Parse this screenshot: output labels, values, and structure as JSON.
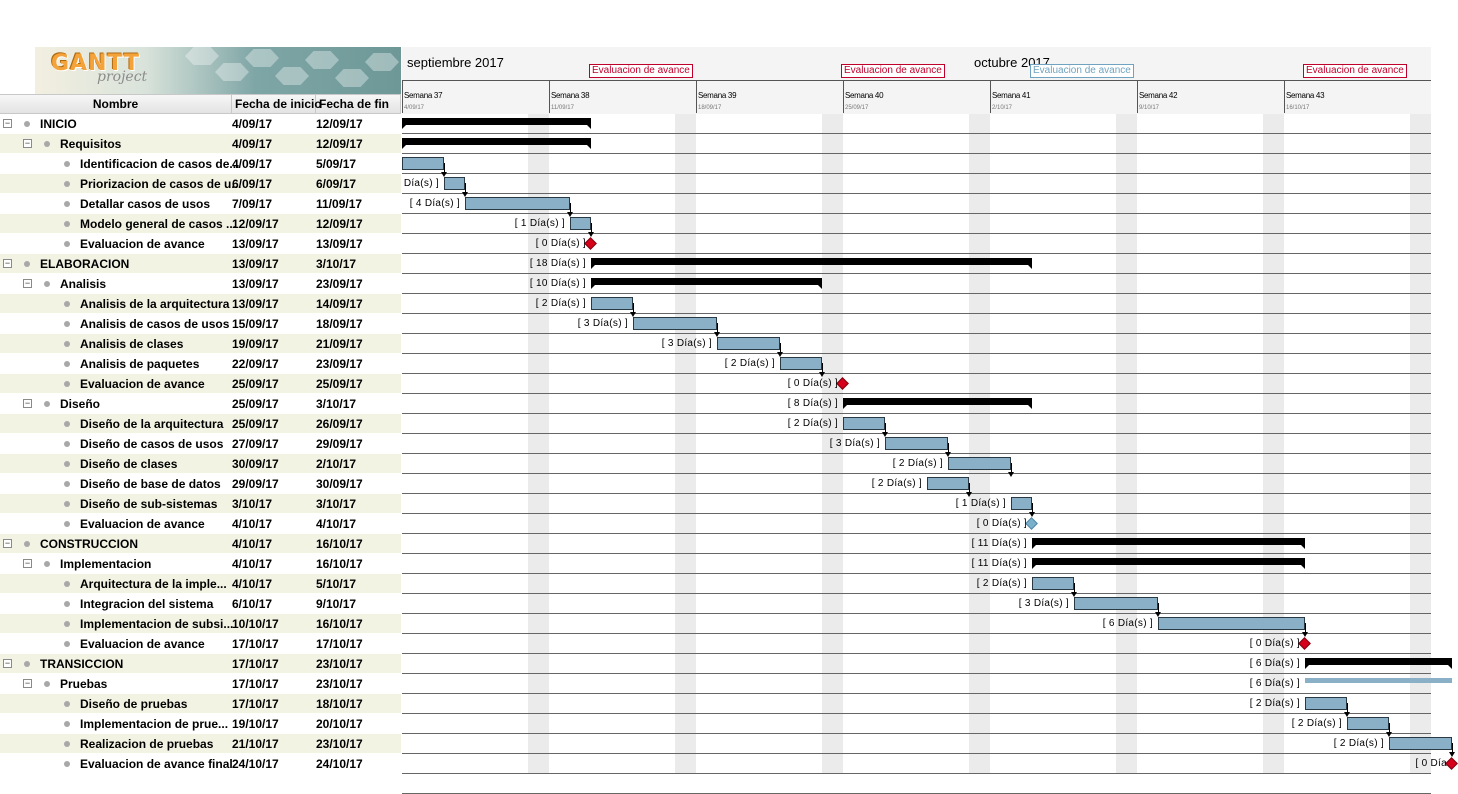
{
  "logo": {
    "word": "GANTT",
    "sub": "project"
  },
  "columns": {
    "name": "Nombre",
    "start": "Fecha de inicio",
    "end": "Fecha de fin"
  },
  "timeline": {
    "months": [
      {
        "label": "septiembre 2017",
        "day": 0
      },
      {
        "label": "octubre 2017",
        "day": 27
      }
    ],
    "weeks": [
      {
        "label": "Semana 37",
        "date": "4/09/17"
      },
      {
        "label": "Semana 38",
        "date": "11/09/17"
      },
      {
        "label": "Semana 39",
        "date": "18/09/17"
      },
      {
        "label": "Semana 40",
        "date": "25/09/17"
      },
      {
        "label": "Semana 41",
        "date": "2/10/17"
      },
      {
        "label": "Semana 42",
        "date": "9/10/17"
      },
      {
        "label": "Semana 43",
        "date": "16/10/17"
      }
    ],
    "milestone_labels": [
      {
        "text": "Evaluacion de avance",
        "day": 9,
        "past": false
      },
      {
        "text": "Evaluacion de avance",
        "day": 21,
        "past": false
      },
      {
        "text": "Evaluacion de avance",
        "day": 30,
        "past": true
      },
      {
        "text": "Evaluacion de avance",
        "day": 43,
        "past": false
      }
    ]
  },
  "tasks": [
    {
      "name": "INICIO",
      "start": "4/09/17",
      "end": "12/09/17",
      "level": 0,
      "type": "summary",
      "s": 0,
      "e": 9,
      "dur": ""
    },
    {
      "name": "Requisitos",
      "start": "4/09/17",
      "end": "12/09/17",
      "level": 1,
      "type": "summary",
      "s": 0,
      "e": 9,
      "dur": ""
    },
    {
      "name": "Identificacion de casos de...",
      "start": "4/09/17",
      "end": "5/09/17",
      "level": 2,
      "type": "task",
      "s": 0,
      "e": 2,
      "dur": ""
    },
    {
      "name": "Priorizacion de casos de u...",
      "start": "6/09/17",
      "end": "6/09/17",
      "level": 2,
      "type": "task",
      "s": 2,
      "e": 3,
      "dur": "Día(s) ]"
    },
    {
      "name": "Detallar casos de usos",
      "start": "7/09/17",
      "end": "11/09/17",
      "level": 2,
      "type": "task",
      "s": 3,
      "e": 8,
      "dur": "[ 4 Día(s) ]"
    },
    {
      "name": "Modelo general de casos ...",
      "start": "12/09/17",
      "end": "12/09/17",
      "level": 2,
      "type": "task",
      "s": 8,
      "e": 9,
      "dur": "[ 1 Día(s) ]"
    },
    {
      "name": "Evaluacion de avance",
      "start": "13/09/17",
      "end": "13/09/17",
      "level": 2,
      "type": "milestone",
      "s": 9,
      "e": 9,
      "dur": "[ 0 Día(s) ]"
    },
    {
      "name": "ELABORACION",
      "start": "13/09/17",
      "end": "3/10/17",
      "level": 0,
      "type": "summary",
      "s": 9,
      "e": 30,
      "dur": "[ 18 Día(s) ]"
    },
    {
      "name": "Analisis",
      "start": "13/09/17",
      "end": "23/09/17",
      "level": 1,
      "type": "summary",
      "s": 9,
      "e": 20,
      "dur": "[ 10 Día(s) ]"
    },
    {
      "name": "Analisis de la arquitectura",
      "start": "13/09/17",
      "end": "14/09/17",
      "level": 2,
      "type": "task",
      "s": 9,
      "e": 11,
      "dur": "[ 2 Día(s) ]"
    },
    {
      "name": "Analisis de casos de usos",
      "start": "15/09/17",
      "end": "18/09/17",
      "level": 2,
      "type": "task",
      "s": 11,
      "e": 15,
      "dur": "[ 3 Día(s) ]"
    },
    {
      "name": "Analisis de clases",
      "start": "19/09/17",
      "end": "21/09/17",
      "level": 2,
      "type": "task",
      "s": 15,
      "e": 18,
      "dur": "[ 3 Día(s) ]"
    },
    {
      "name": "Analisis de paquetes",
      "start": "22/09/17",
      "end": "23/09/17",
      "level": 2,
      "type": "task",
      "s": 18,
      "e": 20,
      "dur": "[ 2 Día(s) ]"
    },
    {
      "name": "Evaluacion de avance",
      "start": "25/09/17",
      "end": "25/09/17",
      "level": 2,
      "type": "milestone",
      "s": 21,
      "e": 21,
      "dur": "[ 0 Día(s) ]"
    },
    {
      "name": "Diseño",
      "start": "25/09/17",
      "end": "3/10/17",
      "level": 1,
      "type": "summary",
      "s": 21,
      "e": 30,
      "dur": "[ 8 Día(s) ]"
    },
    {
      "name": "Diseño de la arquitectura",
      "start": "25/09/17",
      "end": "26/09/17",
      "level": 2,
      "type": "task",
      "s": 21,
      "e": 23,
      "dur": "[ 2 Día(s) ]"
    },
    {
      "name": "Diseño de casos de usos",
      "start": "27/09/17",
      "end": "29/09/17",
      "level": 2,
      "type": "task",
      "s": 23,
      "e": 26,
      "dur": "[ 3 Día(s) ]"
    },
    {
      "name": "Diseño de clases",
      "start": "30/09/17",
      "end": "2/10/17",
      "level": 2,
      "type": "task",
      "s": 26,
      "e": 29,
      "dur": "[ 2 Día(s) ]"
    },
    {
      "name": "Diseño de base de datos",
      "start": "29/09/17",
      "end": "30/09/17",
      "level": 2,
      "type": "task",
      "s": 25,
      "e": 27,
      "dur": "[ 2 Día(s) ]"
    },
    {
      "name": "Diseño de sub-sistemas",
      "start": "3/10/17",
      "end": "3/10/17",
      "level": 2,
      "type": "task",
      "s": 29,
      "e": 30,
      "dur": "[ 1 Día(s) ]"
    },
    {
      "name": "Evaluacion de avance",
      "start": "4/10/17",
      "end": "4/10/17",
      "level": 2,
      "type": "milestone_past",
      "s": 30,
      "e": 30,
      "dur": "[ 0 Día(s) ]"
    },
    {
      "name": "CONSTRUCCION",
      "start": "4/10/17",
      "end": "16/10/17",
      "level": 0,
      "type": "summary",
      "s": 30,
      "e": 43,
      "dur": "[ 11 Día(s) ]"
    },
    {
      "name": "Implementacion",
      "start": "4/10/17",
      "end": "16/10/17",
      "level": 1,
      "type": "summary",
      "s": 30,
      "e": 43,
      "dur": "[ 11 Día(s) ]"
    },
    {
      "name": "Arquitectura de la imple...",
      "start": "4/10/17",
      "end": "5/10/17",
      "level": 2,
      "type": "task",
      "s": 30,
      "e": 32,
      "dur": "[ 2 Día(s) ]"
    },
    {
      "name": "Integracion del sistema",
      "start": "6/10/17",
      "end": "9/10/17",
      "level": 2,
      "type": "task",
      "s": 32,
      "e": 36,
      "dur": "[ 3 Día(s) ]"
    },
    {
      "name": "Implementacion de subsi...",
      "start": "10/10/17",
      "end": "16/10/17",
      "level": 2,
      "type": "task",
      "s": 36,
      "e": 43,
      "dur": "[ 6 Día(s) ]"
    },
    {
      "name": "Evaluacion de avance",
      "start": "17/10/17",
      "end": "17/10/17",
      "level": 2,
      "type": "milestone",
      "s": 43,
      "e": 43,
      "dur": "[ 0 Día(s) ]"
    },
    {
      "name": "TRANSICCION",
      "start": "17/10/17",
      "end": "23/10/17",
      "level": 0,
      "type": "summary",
      "s": 43,
      "e": 50,
      "dur": "[ 6 Día(s) ]"
    },
    {
      "name": "Pruebas",
      "start": "17/10/17",
      "end": "23/10/17",
      "level": 1,
      "type": "summary_light",
      "s": 43,
      "e": 50,
      "dur": "[ 6 Día(s) ]"
    },
    {
      "name": "Diseño de pruebas",
      "start": "17/10/17",
      "end": "18/10/17",
      "level": 2,
      "type": "task",
      "s": 43,
      "e": 45,
      "dur": "[ 2 Día(s) ]"
    },
    {
      "name": "Implementacion de prue...",
      "start": "19/10/17",
      "end": "20/10/17",
      "level": 2,
      "type": "task",
      "s": 45,
      "e": 47,
      "dur": "[ 2 Día(s) ]"
    },
    {
      "name": "Realizacion de pruebas",
      "start": "21/10/17",
      "end": "23/10/17",
      "level": 2,
      "type": "task",
      "s": 47,
      "e": 50,
      "dur": "[ 2 Día(s) ]"
    },
    {
      "name": "Evaluacion de avance final",
      "start": "24/10/17",
      "end": "24/10/17",
      "level": 2,
      "type": "milestone",
      "s": 50,
      "e": 50,
      "dur": "[ 0 Día"
    }
  ]
}
